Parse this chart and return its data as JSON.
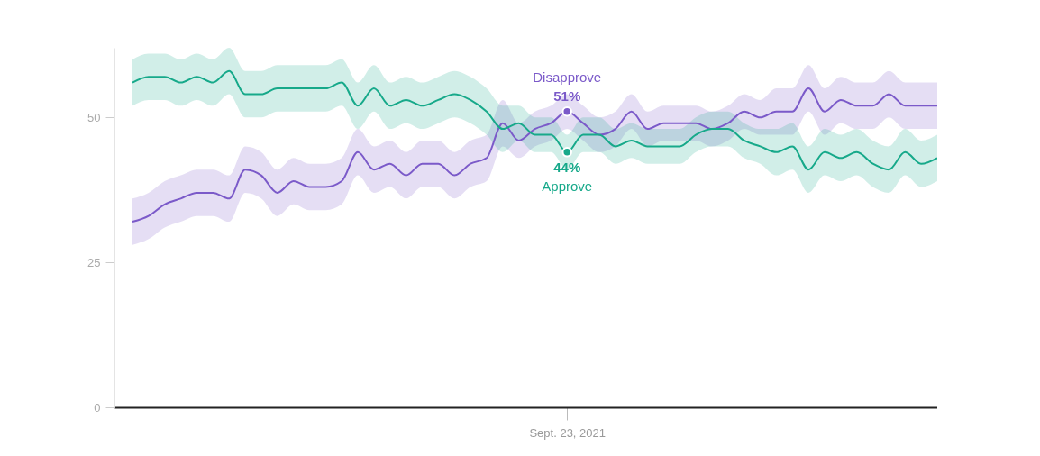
{
  "chart_data": {
    "type": "line",
    "categories": [
      null,
      null,
      null,
      null,
      null,
      null,
      null,
      null,
      null,
      null,
      null,
      null,
      null,
      null,
      null,
      null,
      null,
      null,
      null,
      null,
      null,
      null,
      null,
      null,
      null,
      null,
      null,
      "Sept. 23, 2021",
      null,
      null,
      null,
      null,
      null,
      null,
      null,
      null,
      null,
      null,
      null,
      null,
      null,
      null,
      null,
      null,
      null,
      null,
      null,
      null,
      null,
      null,
      null
    ],
    "ylim": [
      0,
      62
    ],
    "yticks": [
      0,
      25,
      50
    ],
    "grid": false,
    "series": [
      {
        "name": "Disapprove",
        "color": "#7b5ac9",
        "values": [
          32,
          33,
          35,
          36,
          37,
          37,
          36,
          41,
          40,
          37,
          39,
          38,
          38,
          39,
          44,
          41,
          42,
          40,
          42,
          42,
          40,
          42,
          43,
          49,
          46,
          48,
          49,
          51,
          49,
          47,
          48,
          51,
          48,
          49,
          49,
          49,
          48,
          49,
          51,
          50,
          51,
          51,
          55,
          51,
          53,
          52,
          52,
          54,
          52,
          52,
          52
        ],
        "lower": [
          28,
          29,
          31,
          32,
          33,
          33,
          32,
          37,
          36,
          33,
          35,
          34,
          34,
          35,
          40,
          37,
          38,
          36,
          38,
          38,
          36,
          38,
          39,
          45,
          43,
          45,
          46,
          48,
          46,
          44,
          45,
          48,
          45,
          46,
          46,
          46,
          45,
          46,
          48,
          47,
          47,
          47,
          51,
          47,
          49,
          48,
          48,
          50,
          48,
          48,
          48
        ],
        "upper": [
          36,
          37,
          39,
          40,
          41,
          41,
          40,
          45,
          44,
          41,
          43,
          42,
          42,
          43,
          48,
          45,
          46,
          44,
          46,
          46,
          44,
          46,
          47,
          53,
          49,
          51,
          52,
          54,
          52,
          50,
          51,
          54,
          51,
          52,
          52,
          52,
          51,
          52,
          54,
          53,
          55,
          55,
          59,
          55,
          57,
          56,
          56,
          58,
          56,
          56,
          56
        ],
        "value_labels": [
          null,
          null,
          null,
          null,
          null,
          null,
          null,
          null,
          null,
          null,
          null,
          null,
          null,
          null,
          null,
          null,
          null,
          null,
          null,
          null,
          null,
          null,
          null,
          null,
          null,
          null,
          null,
          "51%",
          null,
          null,
          null,
          null,
          null,
          null,
          null,
          null,
          null,
          null,
          null,
          null,
          null,
          null,
          null,
          null,
          null,
          null,
          null,
          null,
          null,
          null,
          null
        ]
      },
      {
        "name": "Approve",
        "color": "#17a98a",
        "values": [
          56,
          57,
          57,
          56,
          57,
          56,
          58,
          54,
          54,
          55,
          55,
          55,
          55,
          56,
          52,
          55,
          52,
          53,
          52,
          53,
          54,
          53,
          51,
          48,
          49,
          47,
          47,
          44,
          47,
          47,
          45,
          46,
          45,
          45,
          45,
          47,
          48,
          48,
          46,
          45,
          44,
          45,
          41,
          44,
          43,
          44,
          42,
          41,
          44,
          42,
          43
        ],
        "lower": [
          52,
          53,
          53,
          52,
          53,
          52,
          54,
          50,
          50,
          51,
          51,
          51,
          51,
          52,
          48,
          51,
          48,
          49,
          48,
          49,
          50,
          49,
          47,
          44,
          46,
          44,
          44,
          41,
          44,
          44,
          42,
          43,
          42,
          42,
          42,
          44,
          45,
          45,
          43,
          42,
          40,
          41,
          37,
          40,
          39,
          40,
          38,
          37,
          40,
          38,
          39
        ],
        "upper": [
          60,
          61,
          61,
          60,
          61,
          60,
          62,
          58,
          58,
          59,
          59,
          59,
          59,
          60,
          56,
          59,
          56,
          57,
          56,
          57,
          58,
          57,
          55,
          52,
          52,
          50,
          50,
          47,
          50,
          50,
          48,
          49,
          48,
          48,
          48,
          50,
          51,
          51,
          49,
          48,
          48,
          49,
          45,
          48,
          47,
          48,
          46,
          45,
          48,
          46,
          47
        ],
        "value_labels": [
          null,
          null,
          null,
          null,
          null,
          null,
          null,
          null,
          null,
          null,
          null,
          null,
          null,
          null,
          null,
          null,
          null,
          null,
          null,
          null,
          null,
          null,
          null,
          null,
          null,
          null,
          null,
          "44%",
          null,
          null,
          null,
          null,
          null,
          null,
          null,
          null,
          null,
          null,
          null,
          null,
          null,
          null,
          null,
          null,
          null,
          null,
          null,
          null,
          null,
          null,
          null
        ]
      }
    ]
  }
}
